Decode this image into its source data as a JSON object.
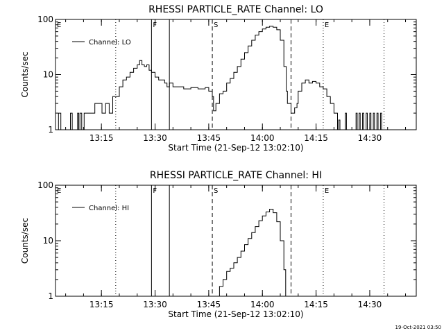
{
  "timestamp": "19-Oct-2021 03:50",
  "chart_data": [
    {
      "type": "line",
      "title": "RHESSI PARTICLE_RATE Channel: LO",
      "xlabel": "Start Time (21-Sep-12 13:02:10)",
      "ylabel": "Counts/sec",
      "yscale": "log",
      "ylim": [
        1,
        100
      ],
      "xlim": [
        "13:02:10",
        "14:43:00"
      ],
      "x_ticks": [
        "13:15",
        "13:30",
        "13:45",
        "14:00",
        "14:15",
        "14:30"
      ],
      "y_ticks": [
        "1",
        "10",
        "100"
      ],
      "legend": {
        "label": "Channel: LO",
        "placement": "top-left"
      },
      "markers": [
        {
          "time": "13:02:10",
          "style": "dotted",
          "label": "E"
        },
        {
          "time": "13:19:00",
          "style": "dotted",
          "label": ""
        },
        {
          "time": "13:29:00",
          "style": "solid",
          "label": "F"
        },
        {
          "time": "13:34:00",
          "style": "solid",
          "label": ""
        },
        {
          "time": "13:46:00",
          "style": "dashed",
          "label": "S"
        },
        {
          "time": "14:08:00",
          "style": "dashed",
          "label": ""
        },
        {
          "time": "14:17:00",
          "style": "dotted",
          "label": "E"
        },
        {
          "time": "14:34:00",
          "style": "dotted",
          "label": ""
        }
      ],
      "series": [
        {
          "points": [
            [
              "13:02:10",
              1
            ],
            [
              "13:03:00",
              2
            ],
            [
              "13:03:40",
              1
            ],
            [
              "13:06:00",
              1
            ],
            [
              "13:06:20",
              2
            ],
            [
              "13:06:50",
              1
            ],
            [
              "13:08:00",
              1
            ],
            [
              "13:08:20",
              2
            ],
            [
              "13:08:40",
              1
            ],
            [
              "13:09:00",
              2
            ],
            [
              "13:09:30",
              1
            ],
            [
              "13:10:00",
              1
            ],
            [
              "13:10:10",
              2
            ],
            [
              "13:13:00",
              2
            ],
            [
              "13:13:10",
              3
            ],
            [
              "13:15:00",
              3
            ],
            [
              "13:15:10",
              2
            ],
            [
              "13:16:00",
              2
            ],
            [
              "13:16:10",
              3
            ],
            [
              "13:17:00",
              3
            ],
            [
              "13:17:10",
              2
            ],
            [
              "13:18:00",
              2
            ],
            [
              "13:18:10",
              4
            ],
            [
              "13:19:00",
              4
            ],
            [
              "13:20:00",
              6
            ],
            [
              "13:21:00",
              8
            ],
            [
              "13:22:00",
              9
            ],
            [
              "13:23:00",
              11
            ],
            [
              "13:24:00",
              13
            ],
            [
              "13:25:00",
              15
            ],
            [
              "13:25:40",
              18
            ],
            [
              "13:26:20",
              15
            ],
            [
              "13:27:00",
              14
            ],
            [
              "13:27:40",
              15
            ],
            [
              "13:28:20",
              12
            ],
            [
              "13:29:00",
              11
            ],
            [
              "13:30:00",
              9
            ],
            [
              "13:31:00",
              8
            ],
            [
              "13:32:00",
              8
            ],
            [
              "13:32:40",
              7
            ],
            [
              "13:33:20",
              6
            ],
            [
              "13:34:00",
              7
            ],
            [
              "13:35:00",
              6
            ],
            [
              "13:36:00",
              6
            ],
            [
              "13:38:00",
              5.5
            ],
            [
              "13:40:00",
              5.8
            ],
            [
              "13:42:00",
              5.5
            ],
            [
              "13:44:00",
              5.8
            ],
            [
              "13:45:00",
              5
            ],
            [
              "13:46:00",
              4
            ],
            [
              "13:46:20",
              2.2
            ],
            [
              "13:47:00",
              3
            ],
            [
              "13:48:00",
              4.5
            ],
            [
              "13:49:00",
              5
            ],
            [
              "13:50:00",
              7
            ],
            [
              "13:51:00",
              8.5
            ],
            [
              "13:52:00",
              11
            ],
            [
              "13:53:00",
              14
            ],
            [
              "13:54:00",
              19
            ],
            [
              "13:55:00",
              25
            ],
            [
              "13:56:00",
              33
            ],
            [
              "13:57:00",
              42
            ],
            [
              "13:58:00",
              52
            ],
            [
              "13:59:00",
              60
            ],
            [
              "14:00:00",
              67
            ],
            [
              "14:01:00",
              72
            ],
            [
              "14:02:00",
              75
            ],
            [
              "14:03:00",
              72
            ],
            [
              "14:04:00",
              65
            ],
            [
              "14:05:00",
              42
            ],
            [
              "14:06:00",
              14
            ],
            [
              "14:06:40",
              5
            ],
            [
              "14:07:00",
              3
            ],
            [
              "14:08:00",
              2
            ],
            [
              "14:09:00",
              2.5
            ],
            [
              "14:09:40",
              3
            ],
            [
              "14:10:00",
              5
            ],
            [
              "14:11:00",
              7
            ],
            [
              "14:12:00",
              8
            ],
            [
              "14:13:00",
              7
            ],
            [
              "14:14:00",
              7.5
            ],
            [
              "14:15:00",
              7
            ],
            [
              "14:16:00",
              6
            ],
            [
              "14:17:00",
              5.5
            ],
            [
              "14:18:00",
              4
            ],
            [
              "14:19:00",
              3
            ],
            [
              "14:20:00",
              2
            ],
            [
              "14:21:00",
              1
            ],
            [
              "14:21:20",
              1.5
            ],
            [
              "14:21:40",
              1
            ],
            [
              "14:23:00",
              1
            ],
            [
              "14:23:10",
              2
            ],
            [
              "14:23:30",
              1
            ],
            [
              "14:26:00",
              1
            ],
            [
              "14:26:10",
              2
            ],
            [
              "14:26:30",
              1
            ],
            [
              "14:27:00",
              2
            ],
            [
              "14:27:20",
              1
            ],
            [
              "14:28:00",
              2
            ],
            [
              "14:28:20",
              1
            ],
            [
              "14:29:00",
              2
            ],
            [
              "14:29:20",
              1
            ],
            [
              "14:30:00",
              2
            ],
            [
              "14:30:20",
              1
            ],
            [
              "14:31:00",
              2
            ],
            [
              "14:31:20",
              1
            ],
            [
              "14:32:00",
              2
            ],
            [
              "14:32:20",
              1
            ],
            [
              "14:33:00",
              2
            ],
            [
              "14:33:20",
              1
            ]
          ]
        }
      ]
    },
    {
      "type": "line",
      "title": "RHESSI PARTICLE_RATE Channel: HI",
      "xlabel": "Start Time (21-Sep-12 13:02:10)",
      "ylabel": "Counts/sec",
      "yscale": "log",
      "ylim": [
        1,
        100
      ],
      "xlim": [
        "13:02:10",
        "14:43:00"
      ],
      "x_ticks": [
        "13:15",
        "13:30",
        "13:45",
        "14:00",
        "14:15",
        "14:30"
      ],
      "y_ticks": [
        "1",
        "10",
        "100"
      ],
      "legend": {
        "label": "Channel: HI",
        "placement": "top-left"
      },
      "markers": [
        {
          "time": "13:02:10",
          "style": "dotted",
          "label": "E"
        },
        {
          "time": "13:19:00",
          "style": "dotted",
          "label": ""
        },
        {
          "time": "13:29:00",
          "style": "solid",
          "label": "F"
        },
        {
          "time": "13:34:00",
          "style": "solid",
          "label": ""
        },
        {
          "time": "13:46:00",
          "style": "dashed",
          "label": "S"
        },
        {
          "time": "14:08:00",
          "style": "dashed",
          "label": ""
        },
        {
          "time": "14:17:00",
          "style": "dotted",
          "label": "E"
        },
        {
          "time": "14:34:00",
          "style": "dotted",
          "label": ""
        }
      ],
      "series": [
        {
          "points": [
            [
              "13:47:00",
              1
            ],
            [
              "13:48:00",
              1.5
            ],
            [
              "13:49:00",
              2
            ],
            [
              "13:50:00",
              2.8
            ],
            [
              "13:51:00",
              3.2
            ],
            [
              "13:52:00",
              4
            ],
            [
              "13:53:00",
              5
            ],
            [
              "13:54:00",
              6.5
            ],
            [
              "13:55:00",
              8.5
            ],
            [
              "13:56:00",
              11
            ],
            [
              "13:57:00",
              14
            ],
            [
              "13:58:00",
              18
            ],
            [
              "13:59:00",
              23
            ],
            [
              "14:00:00",
              28
            ],
            [
              "14:01:00",
              33
            ],
            [
              "14:02:00",
              37
            ],
            [
              "14:03:00",
              32
            ],
            [
              "14:04:00",
              22
            ],
            [
              "14:05:00",
              10
            ],
            [
              "14:06:00",
              3
            ],
            [
              "14:06:30",
              1
            ]
          ]
        }
      ]
    }
  ]
}
